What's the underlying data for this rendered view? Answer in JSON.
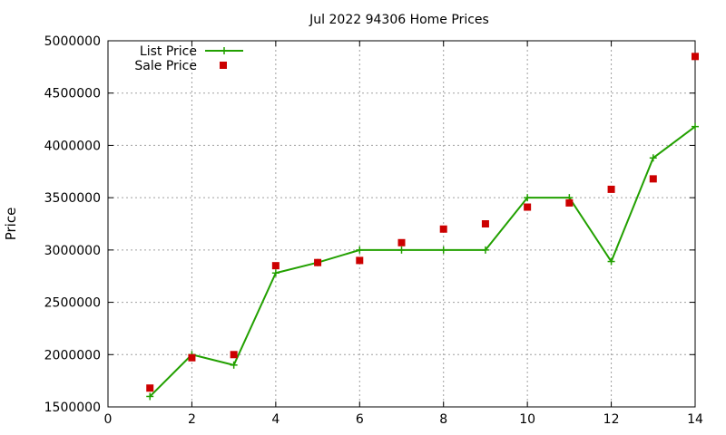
{
  "chart_data": {
    "type": "line",
    "title": "Jul 2022 94306 Home Prices",
    "xlabel": "",
    "ylabel": "Price",
    "xlim": [
      0,
      14
    ],
    "ylim": [
      1500000,
      5000000
    ],
    "xticks": [
      0,
      2,
      4,
      6,
      8,
      10,
      12,
      14
    ],
    "yticks": [
      1500000,
      2000000,
      2500000,
      3000000,
      3500000,
      4000000,
      4500000,
      5000000
    ],
    "grid": true,
    "legend_position": "top-left",
    "series": [
      {
        "name": "List Price",
        "style": "line-plus",
        "color": "#22a000",
        "x": [
          1,
          2,
          3,
          4,
          5,
          6,
          7,
          8,
          9,
          10,
          11,
          12,
          13,
          14
        ],
        "y": [
          1600000,
          2000000,
          1900000,
          2780000,
          2880000,
          3000000,
          3000000,
          3000000,
          3000000,
          3500000,
          3500000,
          2890000,
          3880000,
          4180000
        ]
      },
      {
        "name": "Sale Price",
        "style": "square",
        "color": "#cc0000",
        "x": [
          1,
          2,
          3,
          4,
          5,
          6,
          7,
          8,
          9,
          10,
          11,
          12,
          13,
          14
        ],
        "y": [
          1680000,
          1970000,
          2000000,
          2850000,
          2880000,
          2900000,
          3070000,
          3200000,
          3250000,
          3410000,
          3450000,
          3580000,
          3680000,
          4850000
        ]
      }
    ]
  }
}
